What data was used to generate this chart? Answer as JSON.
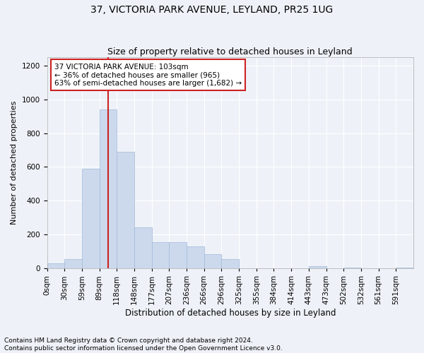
{
  "title1": "37, VICTORIA PARK AVENUE, LEYLAND, PR25 1UG",
  "title2": "Size of property relative to detached houses in Leyland",
  "xlabel": "Distribution of detached houses by size in Leyland",
  "ylabel": "Number of detached properties",
  "bar_color": "#ccd9ed",
  "bar_edge_color": "#a0b8d8",
  "bar_categories": [
    "0sqm",
    "30sqm",
    "59sqm",
    "89sqm",
    "118sqm",
    "148sqm",
    "177sqm",
    "207sqm",
    "236sqm",
    "266sqm",
    "296sqm",
    "325sqm",
    "355sqm",
    "384sqm",
    "414sqm",
    "443sqm",
    "473sqm",
    "502sqm",
    "532sqm",
    "561sqm",
    "591sqm"
  ],
  "bar_values": [
    30,
    55,
    590,
    940,
    690,
    245,
    155,
    155,
    130,
    85,
    55,
    0,
    0,
    0,
    0,
    15,
    0,
    5,
    0,
    0,
    5
  ],
  "ylim": [
    0,
    1250
  ],
  "yticks": [
    0,
    200,
    400,
    600,
    800,
    1000,
    1200
  ],
  "vline_color": "#cc2222",
  "annotation_text": "37 VICTORIA PARK AVENUE: 103sqm\n← 36% of detached houses are smaller (965)\n63% of semi-detached houses are larger (1,682) →",
  "annotation_box_color": "white",
  "annotation_box_edge": "#cc2222",
  "footer1": "Contains HM Land Registry data © Crown copyright and database right 2024.",
  "footer2": "Contains public sector information licensed under the Open Government Licence v3.0.",
  "background_color": "#eef2f8",
  "grid_color": "#ffffff",
  "title1_fontsize": 10,
  "title2_fontsize": 9,
  "xlabel_fontsize": 8.5,
  "ylabel_fontsize": 8,
  "tick_fontsize": 7.5,
  "footer_fontsize": 6.5
}
